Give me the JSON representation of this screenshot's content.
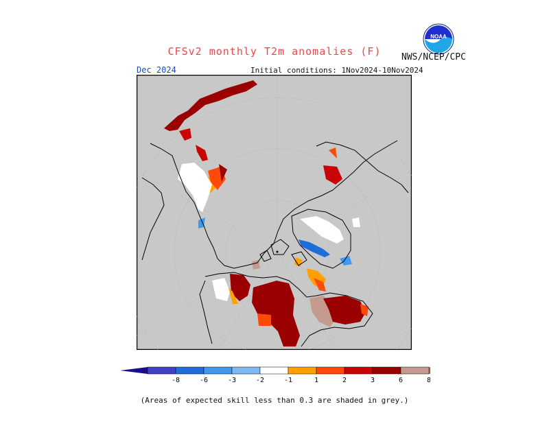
{
  "header": {
    "title": "CFSv2 monthly T2m anomalies (F)",
    "agency": "NWS/NCEP/CPC",
    "logo_text": "NOAA",
    "target_month": "Dec 2024",
    "initial_conditions": "Initial conditions: 1Nov2024-10Nov2024"
  },
  "legend": {
    "labels": [
      "-8",
      "-6",
      "-3",
      "-2",
      "-1",
      "1",
      "2",
      "3",
      "6",
      "8"
    ],
    "colors": [
      "#1c0f8c",
      "#4141c8",
      "#1f6cdb",
      "#3f9aed",
      "#7fb8f3",
      "#ffffff",
      "#ff9f00",
      "#ff4a0a",
      "#c80505",
      "#9a0000",
      "#c49a8e",
      "#8b5a4a"
    ]
  },
  "footnote": "(Areas of expected skill less than 0.3 are shaded in grey.)",
  "map": {
    "projection": "north polar stereographic",
    "background_color": "#c8c8c8",
    "no_skill_color": "#c8c8c8"
  }
}
